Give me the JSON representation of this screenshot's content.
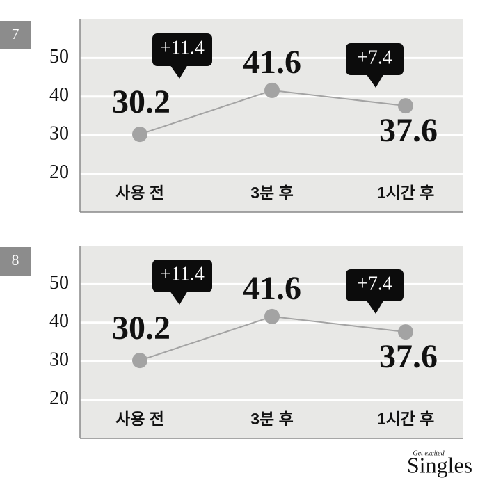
{
  "chart_data": [
    {
      "type": "line",
      "title": "7",
      "categories": [
        "사용 전",
        "3분 후",
        "1시간 후"
      ],
      "values": [
        30.2,
        41.6,
        37.6
      ],
      "color": "#a3a3a3",
      "ylim": [
        10,
        60
      ],
      "yticks": [
        20,
        30,
        40,
        50
      ],
      "grid": true,
      "annotations": [
        "+11.4",
        "+7.4"
      ]
    },
    {
      "type": "line",
      "title": "8",
      "categories": [
        "사용 전",
        "3분 후",
        "1시간 후"
      ],
      "values": [
        30.2,
        41.6,
        37.6
      ],
      "color": "#a3a3a3",
      "ylim": [
        10,
        60
      ],
      "yticks": [
        20,
        30,
        40,
        50
      ],
      "grid": true,
      "annotations": [
        "+11.4",
        "+7.4"
      ]
    }
  ],
  "footer": {
    "tagline": "Get excited",
    "brand": "Singles"
  }
}
